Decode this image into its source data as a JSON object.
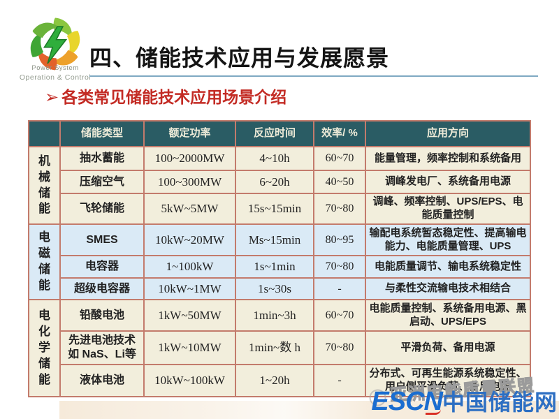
{
  "logo": {
    "line1": "Power System",
    "line2": "Operation & Control"
  },
  "title": "四、储能技术应用与发展愿景",
  "subtitle": {
    "bullet": "➢",
    "text": "各类常见储能技术应用场景介绍"
  },
  "table": {
    "headers": [
      "",
      "储能类型",
      "额定功率",
      "反应时间",
      "效率/ %",
      "应用方向"
    ],
    "groups": [
      {
        "label": "机械储能",
        "rows": [
          [
            "抽水蓄能",
            "100~2000MW",
            "4~10h",
            "60~70",
            "能量管理，频率控制和系统备用"
          ],
          [
            "压缩空气",
            "100~300MW",
            "6~20h",
            "40~50",
            "调峰发电厂、系统备用电源"
          ],
          [
            "飞轮储能",
            "5kW~5MW",
            "15s~15min",
            "70~80",
            "调峰、频率控制、UPS/EPS、电能质量控制"
          ]
        ]
      },
      {
        "label": "电磁储能",
        "rows": [
          [
            "SMES",
            "10kW~20MW",
            "Ms~15min",
            "80~95",
            "输配电系统暂态稳定性、提高输电能力、电能质量管理、UPS"
          ],
          [
            "电容器",
            "1~100kW",
            "1s~1min",
            "70~80",
            "电能质量调节、输电系统稳定性"
          ],
          [
            "超级电容器",
            "10kW~1MW",
            "1s~30s",
            "-",
            "与柔性交流输电技术相结合"
          ]
        ]
      },
      {
        "label": "电化学储能",
        "rows": [
          [
            "铅酸电池",
            "1kW~50MW",
            "1min~3h",
            "60~70",
            "电能质量控制、系统备用电源、黑启动、UPS/EPS"
          ],
          [
            "先进电池技术如 NaS、Li等",
            "1kW~10MW",
            "1min~数 h",
            "70~80",
            "平滑负荷、备用电源"
          ],
          [
            "液体电池",
            "10kW~100kW",
            "1~20h",
            "-",
            "分布式、可再生能源系统稳定性、用户侧平滑负荷、备用电源"
          ]
        ]
      }
    ]
  },
  "footer": {
    "watermark": "亚洲电能质量联盟",
    "escn_en": "ESCN",
    "escn_cn": "中国储能网"
  },
  "colors": {
    "header_bg": "#2a5c64",
    "row_cream": "#f2eedc",
    "row_blue": "#daeaf6",
    "cell_border": "#c37b6c",
    "title_rule_blue": "#7fa9c2",
    "subtitle_red": "#c32b24",
    "escn_blue": "#1a6dd0"
  }
}
